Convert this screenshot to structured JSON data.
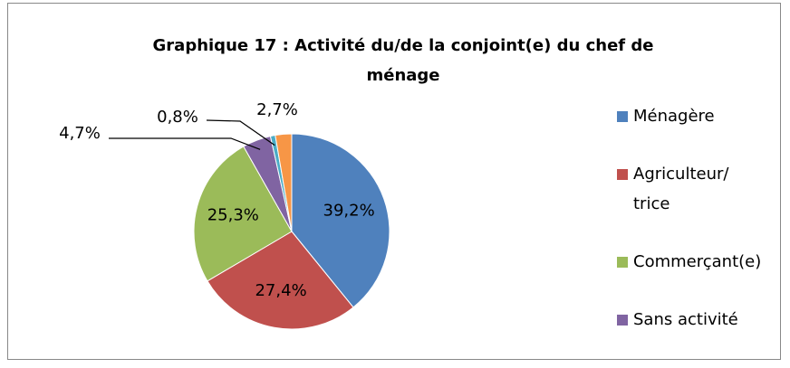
{
  "chart_data": {
    "type": "pie",
    "title": "Graphique 17 : Activité du/de la conjoint(e) du chef de ménage",
    "categories": [
      "Ménagère",
      "Agriculteur/ trice",
      "Commerçant(e)",
      "Sans activité",
      null,
      null
    ],
    "values": [
      39.2,
      27.4,
      25.3,
      4.7,
      0.8,
      2.7
    ],
    "value_labels": [
      "39,2%",
      "27,4%",
      "25,3%",
      "4,7%",
      "0,8%",
      "2,7%"
    ],
    "colors": [
      "#4f81bd",
      "#c0504d",
      "#9bbb59",
      "#8064a2",
      "#4bacc6",
      "#f79646"
    ],
    "legend": "right"
  }
}
